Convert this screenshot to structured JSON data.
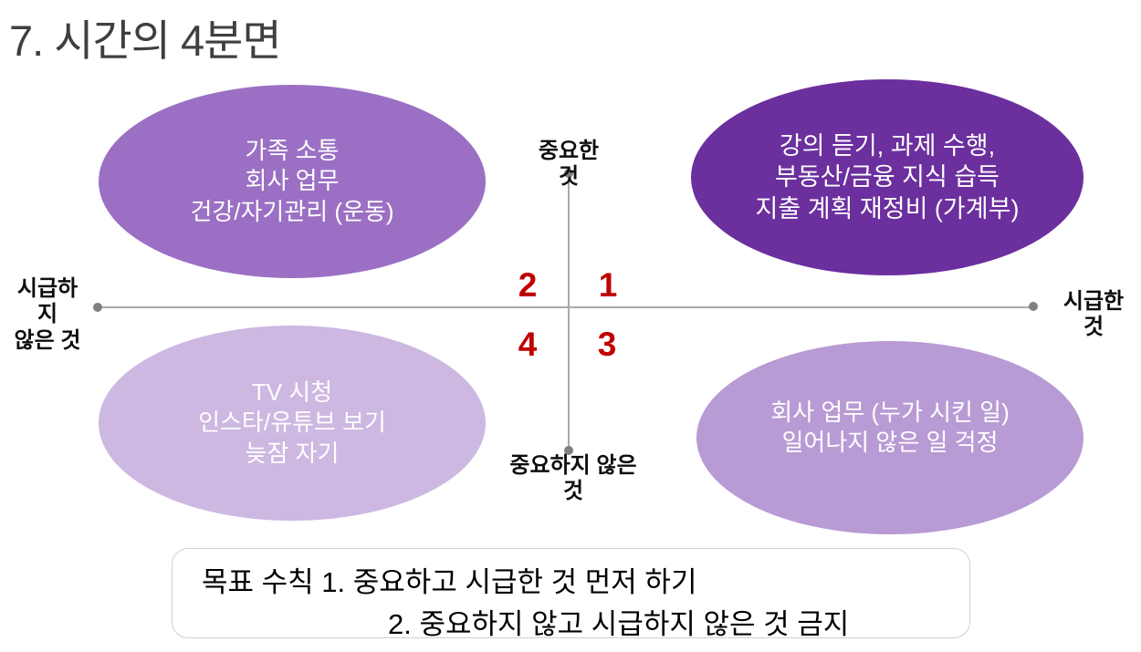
{
  "title": "7. 시간의 4분면",
  "colors": {
    "quadrant1_fill": "#6b2f9e",
    "quadrant2_fill": "#9b70c4",
    "quadrant3_fill": "#b89bd4",
    "quadrant4_fill": "#cdb8e2",
    "quadrant_number": "#c00000",
    "axis_line": "#a9a9a9",
    "title_text": "#3f3f3f"
  },
  "axes": {
    "top": {
      "lines": [
        "중요한",
        "것"
      ]
    },
    "bottom": {
      "lines": [
        "중요하지 않은",
        "것"
      ]
    },
    "left": {
      "lines": [
        "시급하",
        "지",
        "않은 것"
      ]
    },
    "right": {
      "lines": [
        "시급한",
        "것"
      ]
    }
  },
  "quadrant_numbers": {
    "q1": "1",
    "q2": "2",
    "q3": "3",
    "q4": "4"
  },
  "ellipses": {
    "top_left": {
      "lines": [
        "가족 소통",
        "회사 업무",
        "건강/자기관리 (운동)"
      ]
    },
    "top_right": {
      "lines": [
        "강의 듣기, 과제 수행,",
        "부동산/금융 지식 습득",
        "지출 계획 재정비 (가계부)"
      ]
    },
    "bottom_left": {
      "lines": [
        "TV 시청",
        "인스타/유튜브 보기",
        "늦잠 자기"
      ]
    },
    "bottom_right": {
      "lines": [
        "회사 업무 (누가 시킨 일)",
        "일어나지 않은 일 걱정"
      ]
    }
  },
  "goal_box": {
    "line1": "목표 수칙 1. 중요하고 시급한 것 먼저 하기",
    "line2": "2. 중요하지 않고 시급하지 않은 것 금지"
  }
}
